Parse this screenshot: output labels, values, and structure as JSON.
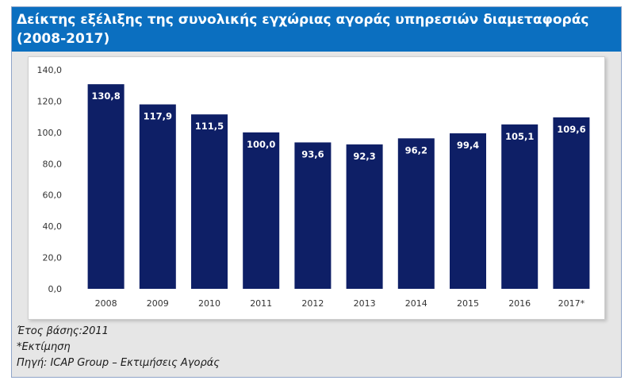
{
  "title": "Δείκτης εξέλιξης της συνολικής εγχώριας αγοράς υπηρεσιών διαμεταφοράς (2008-2017)",
  "notes": {
    "base_year": "Έτος βάσης:2011",
    "estimate": "*Εκτίμηση",
    "source": "Πηγή: ICAP Group – Εκτιμήσεις Αγοράς"
  },
  "colors": {
    "header_bg": "#0b6fc0",
    "bar": "#0e1f66",
    "panel_bg": "#e6e6e6"
  },
  "chart_data": {
    "type": "bar",
    "title": "Δείκτης εξέλιξης της συνολικής εγχώριας αγοράς υπηρεσιών διαμεταφοράς (2008-2017)",
    "xlabel": "",
    "ylabel": "",
    "categories": [
      "2008",
      "2009",
      "2010",
      "2011",
      "2012",
      "2013",
      "2014",
      "2015",
      "2016",
      "2017*"
    ],
    "values": [
      130.8,
      117.9,
      111.5,
      100.0,
      93.6,
      92.3,
      96.2,
      99.4,
      105.1,
      109.6
    ],
    "data_labels": [
      "130,8",
      "117,9",
      "111,5",
      "100,0",
      "93,6",
      "92,3",
      "96,2",
      "99,4",
      "105,1",
      "109,6"
    ],
    "ylim": [
      0,
      140
    ],
    "yticks": [
      0,
      20,
      40,
      60,
      80,
      100,
      120,
      140
    ],
    "ytick_labels": [
      "0,0",
      "20,0",
      "40,0",
      "60,0",
      "80,0",
      "100,0",
      "120,0",
      "140,0"
    ],
    "grid": false,
    "legend": "none"
  }
}
